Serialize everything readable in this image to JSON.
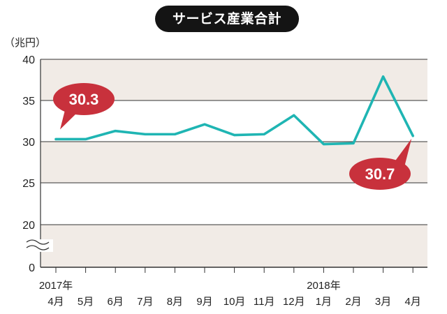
{
  "chart_data": {
    "type": "line",
    "title": "サービス産業合計",
    "ylabel": "（兆円）",
    "ylim": [
      0,
      40
    ],
    "axis_break": [
      0,
      20
    ],
    "y_ticks": [
      {
        "value": 40,
        "label": "40"
      },
      {
        "value": 35,
        "label": "35"
      },
      {
        "value": 30,
        "label": "30"
      },
      {
        "value": 25,
        "label": "25"
      },
      {
        "value": 20,
        "label": "20"
      },
      {
        "value": 0,
        "label": "0"
      }
    ],
    "categories": [
      "4月",
      "5月",
      "6月",
      "7月",
      "8月",
      "9月",
      "10月",
      "11月",
      "12月",
      "1月",
      "2月",
      "3月",
      "4月"
    ],
    "year_labels": [
      {
        "index": 0,
        "label": "2017年"
      },
      {
        "index": 9,
        "label": "2018年"
      }
    ],
    "series": [
      {
        "name": "サービス産業合計",
        "color": "#1fb5b3",
        "values": [
          30.3,
          30.3,
          31.3,
          30.9,
          30.9,
          32.1,
          30.8,
          30.9,
          33.2,
          29.7,
          29.8,
          37.9,
          30.7
        ]
      }
    ],
    "callouts": [
      {
        "index": 0,
        "label": "30.3"
      },
      {
        "index": 12,
        "label": "30.7"
      }
    ]
  },
  "colors": {
    "band": "#f1ebe6",
    "line": "#1fb5b3",
    "callout": "#c8313c",
    "axis": "#333333"
  }
}
